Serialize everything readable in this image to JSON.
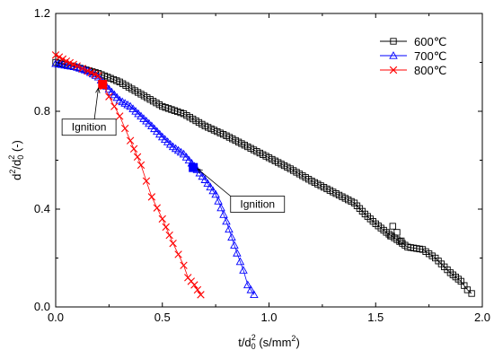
{
  "chart_data": {
    "type": "scatter",
    "xlabel": {
      "base": "t/d",
      "sub": "0",
      "sup": "2",
      "unit": " (s/mm",
      "unit_sup": "2",
      "close": ")"
    },
    "ylabel": {
      "base": "d",
      "sup": "2",
      "slash": "/d",
      "sub": "0",
      "sup2": "2",
      "unit": " (-)"
    },
    "xlim": [
      0,
      2.0
    ],
    "ylim": [
      0,
      1.2
    ],
    "xticks": [
      "0.0",
      "0.5",
      "1.0",
      "1.5",
      "2.0"
    ],
    "yticks": [
      "0.0",
      "0.4",
      "0.8",
      "1.2"
    ],
    "xtick_values": [
      0,
      0.5,
      1.0,
      1.5,
      2.0
    ],
    "ytick_values": [
      0,
      0.4,
      0.8,
      1.2
    ],
    "legend_position": "top-right",
    "series": [
      {
        "name": "600℃",
        "marker": "square",
        "color": "#000000",
        "keypoints": [
          [
            0,
            1.0
          ],
          [
            0.1,
            0.98
          ],
          [
            0.2,
            0.955
          ],
          [
            0.3,
            0.92
          ],
          [
            0.4,
            0.87
          ],
          [
            0.5,
            0.82
          ],
          [
            0.6,
            0.79
          ],
          [
            0.7,
            0.74
          ],
          [
            0.8,
            0.7
          ],
          [
            0.9,
            0.655
          ],
          [
            1.0,
            0.61
          ],
          [
            1.1,
            0.565
          ],
          [
            1.2,
            0.515
          ],
          [
            1.3,
            0.47
          ],
          [
            1.4,
            0.425
          ],
          [
            1.45,
            0.38
          ],
          [
            1.5,
            0.34
          ],
          [
            1.55,
            0.305
          ],
          [
            1.6,
            0.275
          ],
          [
            1.65,
            0.245
          ],
          [
            1.72,
            0.235
          ],
          [
            1.78,
            0.2
          ],
          [
            1.85,
            0.14
          ],
          [
            1.9,
            0.105
          ],
          [
            1.93,
            0.07
          ],
          [
            1.95,
            0.055
          ]
        ],
        "extra": [
          [
            1.58,
            0.33
          ],
          [
            1.6,
            0.305
          ],
          [
            1.57,
            0.29
          ],
          [
            1.62,
            0.27
          ]
        ],
        "step": 0.0135
      },
      {
        "name": "700℃",
        "marker": "triangle",
        "color": "#0000ff",
        "keypoints": [
          [
            0,
            0.995
          ],
          [
            0.1,
            0.98
          ],
          [
            0.15,
            0.965
          ],
          [
            0.2,
            0.94
          ],
          [
            0.25,
            0.89
          ],
          [
            0.3,
            0.845
          ],
          [
            0.35,
            0.82
          ],
          [
            0.4,
            0.78
          ],
          [
            0.45,
            0.74
          ],
          [
            0.5,
            0.695
          ],
          [
            0.55,
            0.655
          ],
          [
            0.6,
            0.625
          ],
          [
            0.65,
            0.575
          ],
          [
            0.7,
            0.52
          ],
          [
            0.75,
            0.46
          ],
          [
            0.8,
            0.35
          ],
          [
            0.85,
            0.22
          ],
          [
            0.88,
            0.15
          ],
          [
            0.9,
            0.09
          ],
          [
            0.93,
            0.05
          ]
        ],
        "extra": [],
        "step": 0.0135
      },
      {
        "name": "800℃",
        "marker": "x",
        "color": "#ff0000",
        "keypoints": [
          [
            0,
            1.03
          ],
          [
            0.05,
            1.005
          ],
          [
            0.1,
            0.985
          ],
          [
            0.15,
            0.965
          ],
          [
            0.2,
            0.945
          ],
          [
            0.25,
            0.86
          ],
          [
            0.3,
            0.78
          ],
          [
            0.35,
            0.68
          ],
          [
            0.4,
            0.58
          ],
          [
            0.45,
            0.45
          ],
          [
            0.5,
            0.36
          ],
          [
            0.55,
            0.26
          ],
          [
            0.6,
            0.17
          ],
          [
            0.62,
            0.12
          ],
          [
            0.65,
            0.09
          ],
          [
            0.68,
            0.05
          ]
        ],
        "extra": [],
        "step": 0.02
      }
    ],
    "ignition_points": [
      {
        "series": "800℃",
        "x": 0.22,
        "y": 0.91,
        "color": "#ff0000"
      },
      {
        "series": "700℃",
        "x": 0.645,
        "y": 0.57,
        "color": "#0000ff"
      }
    ],
    "annotations": [
      {
        "text": "Ignition",
        "box_x": 0.03,
        "box_y": 0.735,
        "point_x": 0.2,
        "point_y": 0.895
      },
      {
        "text": "Ignition",
        "box_x": 0.82,
        "box_y": 0.42,
        "point_x": 0.665,
        "point_y": 0.565
      }
    ]
  }
}
